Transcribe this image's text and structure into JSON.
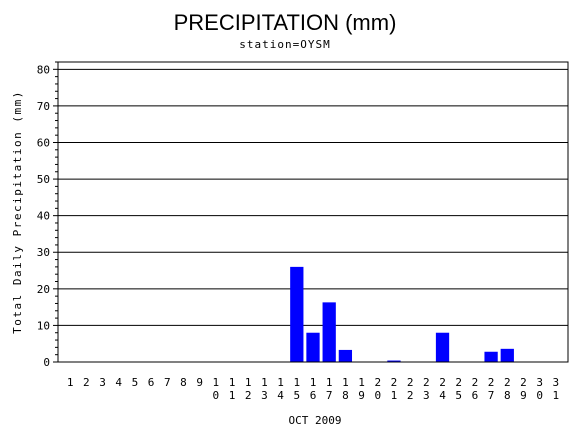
{
  "chart_data": {
    "type": "bar",
    "title": "PRECIPITATION (mm)",
    "subtitle": "station=OYSM",
    "xlabel": "OCT 2009",
    "ylabel": "Total Daily Precipitation (mm)",
    "ylim": [
      0,
      82
    ],
    "yticks": [
      0,
      10,
      20,
      30,
      40,
      50,
      60,
      70,
      80
    ],
    "grid": true,
    "bar_color": "#0000ff",
    "categories": [
      "1",
      "2",
      "3",
      "4",
      "5",
      "6",
      "7",
      "8",
      "9",
      "10",
      "11",
      "12",
      "13",
      "14",
      "15",
      "16",
      "17",
      "18",
      "19",
      "20",
      "21",
      "22",
      "23",
      "24",
      "25",
      "26",
      "27",
      "28",
      "29",
      "30",
      "31"
    ],
    "values": [
      0,
      0,
      0,
      0,
      0,
      0,
      0,
      0,
      0,
      0,
      0,
      0,
      0,
      0,
      26,
      8,
      16.3,
      3.3,
      0,
      0,
      0.4,
      0,
      0,
      8,
      0,
      0,
      2.8,
      3.6,
      0,
      0,
      0
    ]
  }
}
